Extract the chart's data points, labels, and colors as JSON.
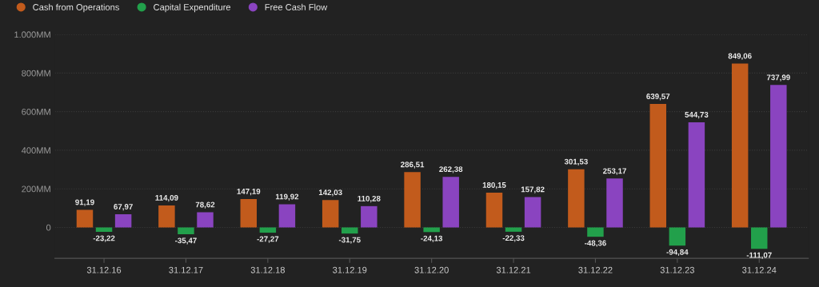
{
  "chart_data": {
    "type": "bar",
    "categories": [
      "31.12.16",
      "31.12.17",
      "31.12.18",
      "31.12.19",
      "31.12.20",
      "31.12.21",
      "31.12.22",
      "31.12.23",
      "31.12.24"
    ],
    "series": [
      {
        "name": "Cash from Operations",
        "color": "#c25b1c",
        "values": [
          91.19,
          114.09,
          147.19,
          142.03,
          286.51,
          180.15,
          301.53,
          639.57,
          849.06
        ],
        "value_labels": [
          "91,19",
          "114,09",
          "147,19",
          "142,03",
          "286,51",
          "180,15",
          "301,53",
          "639,57",
          "849,06"
        ]
      },
      {
        "name": "Capital Expenditure",
        "color": "#22a04b",
        "values": [
          -23.22,
          -35.47,
          -27.27,
          -31.75,
          -24.13,
          -22.33,
          -48.36,
          -94.84,
          -111.07
        ],
        "value_labels": [
          "-23,22",
          "-35,47",
          "-27,27",
          "-31,75",
          "-24,13",
          "-22,33",
          "-48,36",
          "-94,84",
          "-111,07"
        ]
      },
      {
        "name": "Free Cash Flow",
        "color": "#8a44c0",
        "values": [
          67.97,
          78.62,
          119.92,
          110.28,
          262.38,
          157.82,
          253.17,
          544.73,
          737.99
        ],
        "value_labels": [
          "67,97",
          "78,62",
          "119,92",
          "110,28",
          "262,38",
          "157,82",
          "253,17",
          "544,73",
          "737,99"
        ]
      }
    ],
    "ylim": [
      -160,
      1000
    ],
    "yticks": [
      0,
      {
        "value": 200,
        "label": "200MM"
      },
      {
        "value": 400,
        "label": "400MM"
      },
      {
        "value": 600,
        "label": "600MM"
      },
      {
        "value": 800,
        "label": "800MM"
      },
      {
        "value": 1000,
        "label": "1.000MM"
      }
    ],
    "grid": "y",
    "legend": "top left"
  }
}
